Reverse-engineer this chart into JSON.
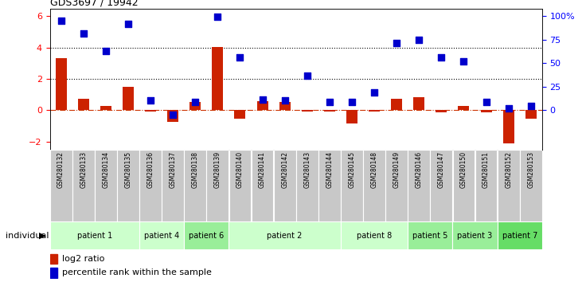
{
  "title": "GDS3697 / 19942",
  "samples": [
    "GSM280132",
    "GSM280133",
    "GSM280134",
    "GSM280135",
    "GSM280136",
    "GSM280137",
    "GSM280138",
    "GSM280139",
    "GSM280140",
    "GSM280141",
    "GSM280142",
    "GSM280143",
    "GSM280144",
    "GSM280145",
    "GSM280148",
    "GSM280149",
    "GSM280146",
    "GSM280147",
    "GSM280150",
    "GSM280151",
    "GSM280152",
    "GSM280153"
  ],
  "log2_ratio": [
    3.35,
    0.72,
    0.27,
    1.52,
    -0.08,
    -0.75,
    0.55,
    4.02,
    -0.55,
    0.57,
    0.55,
    -0.1,
    -0.08,
    -0.85,
    -0.1,
    0.72,
    0.85,
    -0.15,
    0.27,
    -0.12,
    -2.1,
    -0.55
  ],
  "percentile": [
    5.7,
    4.9,
    3.8,
    5.5,
    0.65,
    -0.3,
    0.55,
    5.95,
    3.4,
    0.67,
    0.62,
    2.2,
    0.55,
    0.55,
    1.15,
    4.3,
    4.5,
    3.4,
    3.1,
    0.55,
    0.1,
    0.27
  ],
  "patients": [
    {
      "label": "patient 1",
      "start": 0,
      "end": 4,
      "color": "#ccffcc"
    },
    {
      "label": "patient 4",
      "start": 4,
      "end": 6,
      "color": "#ccffcc"
    },
    {
      "label": "patient 6",
      "start": 6,
      "end": 8,
      "color": "#99ee99"
    },
    {
      "label": "patient 2",
      "start": 8,
      "end": 13,
      "color": "#ccffcc"
    },
    {
      "label": "patient 8",
      "start": 13,
      "end": 16,
      "color": "#ccffcc"
    },
    {
      "label": "patient 5",
      "start": 16,
      "end": 18,
      "color": "#99ee99"
    },
    {
      "label": "patient 3",
      "start": 18,
      "end": 20,
      "color": "#99ee99"
    },
    {
      "label": "patient 7",
      "start": 20,
      "end": 22,
      "color": "#66dd66"
    }
  ],
  "ylim_left": [
    -2.5,
    6.5
  ],
  "yticks_left": [
    -2,
    0,
    2,
    4,
    6
  ],
  "yticks_right_vals": [
    0,
    25,
    50,
    75,
    100
  ],
  "bar_color": "#cc2200",
  "dot_color": "#0000cc",
  "hline_color": "#cc3300",
  "dotted_lines": [
    2.0,
    4.0
  ],
  "legend_items": [
    "log2 ratio",
    "percentile rank within the sample"
  ],
  "background_label": "#c8c8c8"
}
